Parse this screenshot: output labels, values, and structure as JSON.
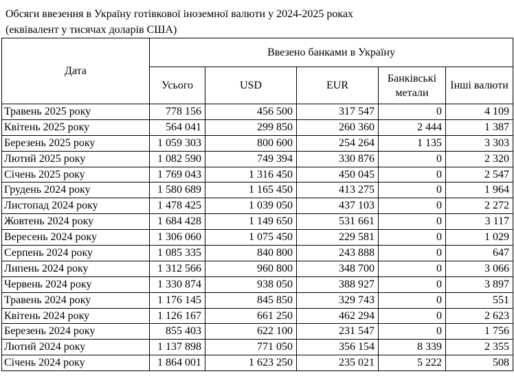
{
  "title": {
    "line1": "Обсяги ввезення в Україну готівкової іноземної валюти у 2024-2025 роках",
    "line2": "(еквівалент у тисячах доларів США)"
  },
  "table": {
    "date_header": "Дата",
    "group_header": "Ввезено банками в Україну",
    "columns": [
      "Усього",
      "USD",
      "EUR",
      "Банківські метали",
      "Інші валюти"
    ],
    "rows": [
      {
        "date": "Травень 2025 року",
        "values": [
          "778 156",
          "456 500",
          "317 547",
          "0",
          "4 109"
        ]
      },
      {
        "date": "Квітень 2025 року",
        "values": [
          "564 041",
          "299 850",
          "260 360",
          "2 444",
          "1 387"
        ]
      },
      {
        "date": "Березень 2025 року",
        "values": [
          "1 059 303",
          "800 600",
          "254 264",
          "1 135",
          "3 303"
        ]
      },
      {
        "date": "Лютий 2025 року",
        "values": [
          "1 082 590",
          "749 394",
          "330 876",
          "0",
          "2 320"
        ]
      },
      {
        "date": "Січень 2025 року",
        "values": [
          "1 769 043",
          "1 316 450",
          "450 045",
          "0",
          "2 547"
        ]
      },
      {
        "date": "Грудень 2024 року",
        "values": [
          "1 580 689",
          "1 165 450",
          "413 275",
          "0",
          "1 964"
        ]
      },
      {
        "date": "Листопад 2024 року",
        "values": [
          "1 478 425",
          "1 039 050",
          "437 103",
          "0",
          "2 272"
        ]
      },
      {
        "date": "Жовтень 2024 року",
        "values": [
          "1 684 428",
          "1 149 650",
          "531 661",
          "0",
          "3 117"
        ]
      },
      {
        "date": "Вересень 2024 року",
        "values": [
          "1 306 060",
          "1 075 450",
          "229 581",
          "0",
          "1 029"
        ]
      },
      {
        "date": "Серпень 2024 року",
        "values": [
          "1 085 335",
          "840 800",
          "243 888",
          "0",
          "647"
        ]
      },
      {
        "date": "Липень 2024 року",
        "values": [
          "1 312 566",
          "960 800",
          "348 700",
          "0",
          "3 066"
        ]
      },
      {
        "date": "Червень 2024 року",
        "values": [
          "1 330 874",
          "938 050",
          "388 927",
          "0",
          "3 897"
        ]
      },
      {
        "date": "Травень 2024 року",
        "values": [
          "1 176 145",
          "845 850",
          "329 743",
          "0",
          "551"
        ]
      },
      {
        "date": "Квітень 2024 року",
        "values": [
          "1 126 167",
          "661 250",
          "462 294",
          "0",
          "2 623"
        ]
      },
      {
        "date": "Березень 2024 року",
        "values": [
          "855 403",
          "622 100",
          "231 547",
          "0",
          "1 756"
        ]
      },
      {
        "date": "Лютий 2024 року",
        "values": [
          "1 137 898",
          "771 050",
          "356 154",
          "8 339",
          "2 355"
        ]
      },
      {
        "date": "Січень 2024 року",
        "values": [
          "1 864 001",
          "1 623 250",
          "235 021",
          "5 222",
          "508"
        ]
      }
    ]
  }
}
